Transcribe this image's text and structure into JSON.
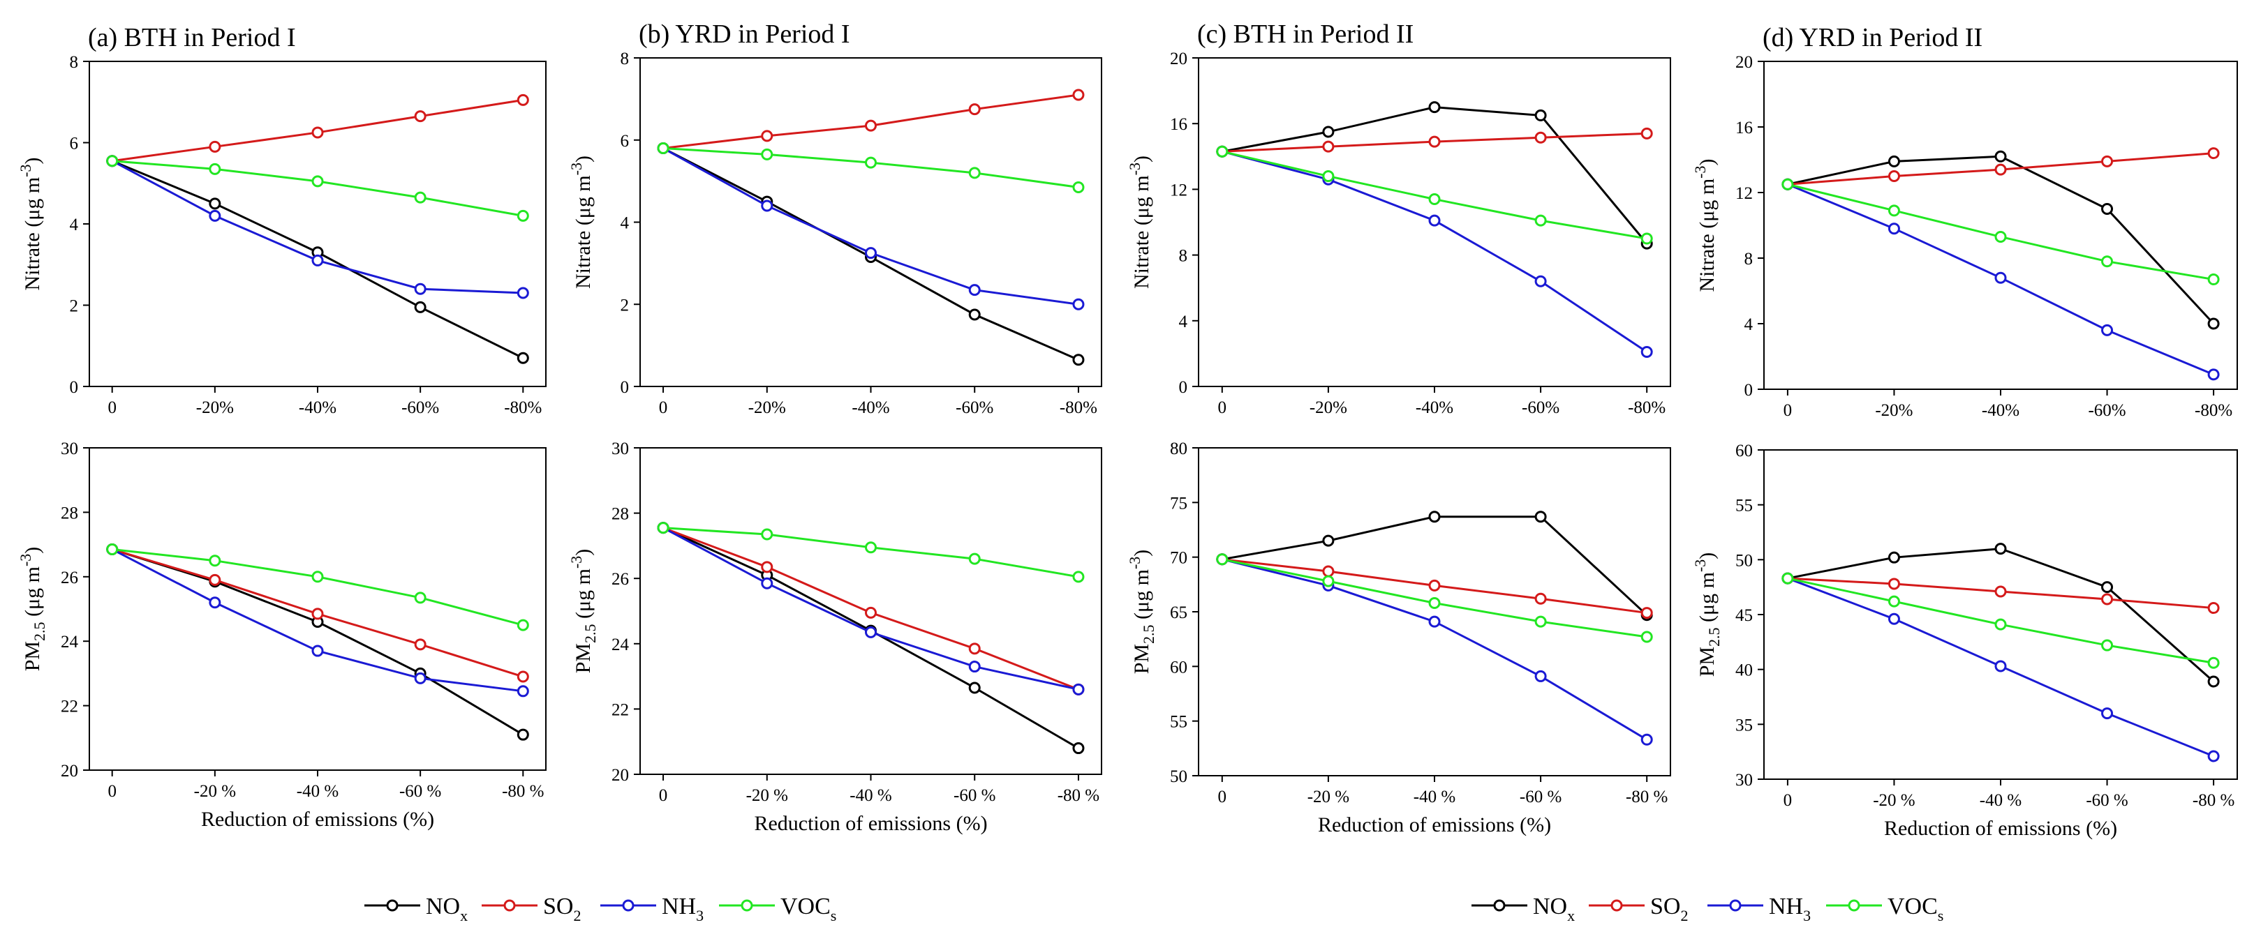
{
  "colors": {
    "NOx": "#000000",
    "SO2": "#d41a1a",
    "NH3": "#1a1ad4",
    "VOCs": "#22e622"
  },
  "legend": [
    {
      "key": "NOx",
      "main": "NO",
      "sub": "x"
    },
    {
      "key": "SO2",
      "main": "SO",
      "sub": "2"
    },
    {
      "key": "NH3",
      "main": "NH",
      "sub": "3"
    },
    {
      "key": "VOCs",
      "main": "VOC",
      "sub": "s"
    }
  ],
  "chart_data": [
    {
      "type": "line",
      "title": "(a) BTH in Period I",
      "ylabel": "Nitrate (μg m-3)",
      "xlabel": "",
      "categories": [
        "0",
        "-20%",
        "-40%",
        "-60%",
        "-80%"
      ],
      "ylim": [
        0,
        8
      ],
      "yticks": [
        0,
        2,
        4,
        6,
        8
      ],
      "series": [
        {
          "name": "NOx",
          "values": [
            5.55,
            4.5,
            3.3,
            1.95,
            0.7
          ]
        },
        {
          "name": "SO2",
          "values": [
            5.55,
            5.9,
            6.25,
            6.65,
            7.05
          ]
        },
        {
          "name": "NH3",
          "values": [
            5.55,
            4.2,
            3.1,
            2.4,
            2.3
          ]
        },
        {
          "name": "VOCs",
          "values": [
            5.55,
            5.35,
            5.05,
            4.65,
            4.2
          ]
        }
      ]
    },
    {
      "type": "line",
      "title": "(b) YRD in Period I",
      "ylabel": "Nitrate (μg m-3)",
      "xlabel": "",
      "categories": [
        "0",
        "-20%",
        "-40%",
        "-60%",
        "-80%"
      ],
      "ylim": [
        0,
        8
      ],
      "yticks": [
        0,
        2,
        4,
        6,
        8
      ],
      "series": [
        {
          "name": "NOx",
          "values": [
            5.8,
            4.5,
            3.15,
            1.75,
            0.65
          ]
        },
        {
          "name": "SO2",
          "values": [
            5.8,
            6.1,
            6.35,
            6.75,
            7.1
          ]
        },
        {
          "name": "NH3",
          "values": [
            5.8,
            4.4,
            3.25,
            2.35,
            2.0
          ]
        },
        {
          "name": "VOCs",
          "values": [
            5.8,
            5.65,
            5.45,
            5.2,
            4.85
          ]
        }
      ]
    },
    {
      "type": "line",
      "title": "(c) BTH in Period II",
      "ylabel": "Nitrate (μg m-3)",
      "xlabel": "",
      "categories": [
        "0",
        "-20%",
        "-40%",
        "-60%",
        "-80%"
      ],
      "ylim": [
        0,
        20
      ],
      "yticks": [
        0,
        4,
        8,
        12,
        16,
        20
      ],
      "series": [
        {
          "name": "NOx",
          "values": [
            14.3,
            15.5,
            17.0,
            16.5,
            8.7
          ]
        },
        {
          "name": "SO2",
          "values": [
            14.3,
            14.6,
            14.9,
            15.15,
            15.4
          ]
        },
        {
          "name": "NH3",
          "values": [
            14.3,
            12.6,
            10.1,
            6.4,
            2.1
          ]
        },
        {
          "name": "VOCs",
          "values": [
            14.3,
            12.8,
            11.4,
            10.1,
            9.0
          ]
        }
      ]
    },
    {
      "type": "line",
      "title": "(d) YRD in Period II",
      "ylabel": "Nitrate (μg m-3)",
      "xlabel": "",
      "categories": [
        "0",
        "-20%",
        "-40%",
        "-60%",
        "-80%"
      ],
      "ylim": [
        0,
        20
      ],
      "yticks": [
        0,
        4,
        8,
        12,
        16,
        20
      ],
      "series": [
        {
          "name": "NOx",
          "values": [
            12.5,
            13.9,
            14.2,
            11.0,
            4.0
          ]
        },
        {
          "name": "SO2",
          "values": [
            12.5,
            13.0,
            13.4,
            13.9,
            14.4
          ]
        },
        {
          "name": "NH3",
          "values": [
            12.5,
            9.8,
            6.8,
            3.6,
            0.9
          ]
        },
        {
          "name": "VOCs",
          "values": [
            12.5,
            10.9,
            9.3,
            7.8,
            6.7
          ]
        }
      ]
    },
    {
      "type": "line",
      "title": "",
      "ylabel": "PM2.5 (μg m-3)",
      "xlabel": "Reduction of emissions (%)",
      "categories": [
        "0",
        "-20 %",
        "-40 %",
        "-60 %",
        "-80 %"
      ],
      "ylim": [
        20,
        30
      ],
      "yticks": [
        20,
        22,
        24,
        26,
        28,
        30
      ],
      "series": [
        {
          "name": "NOx",
          "values": [
            26.85,
            25.85,
            24.6,
            23.0,
            21.1
          ]
        },
        {
          "name": "SO2",
          "values": [
            26.85,
            25.9,
            24.85,
            23.9,
            22.9
          ]
        },
        {
          "name": "NH3",
          "values": [
            26.85,
            25.2,
            23.7,
            22.85,
            22.45
          ]
        },
        {
          "name": "VOCs",
          "values": [
            26.85,
            26.5,
            26.0,
            25.35,
            24.5
          ]
        }
      ]
    },
    {
      "type": "line",
      "title": "",
      "ylabel": "PM2.5 (μg m-3)",
      "xlabel": "Reduction of emissions (%)",
      "categories": [
        "0",
        "-20 %",
        "-40 %",
        "-60 %",
        "-80 %"
      ],
      "ylim": [
        20,
        30
      ],
      "yticks": [
        20,
        22,
        24,
        26,
        28,
        30
      ],
      "series": [
        {
          "name": "NOx",
          "values": [
            27.55,
            26.1,
            24.4,
            22.65,
            20.8
          ]
        },
        {
          "name": "SO2",
          "values": [
            27.55,
            26.35,
            24.95,
            23.85,
            22.6
          ]
        },
        {
          "name": "NH3",
          "values": [
            27.55,
            25.85,
            24.35,
            23.3,
            22.6
          ]
        },
        {
          "name": "VOCs",
          "values": [
            27.55,
            27.35,
            26.95,
            26.6,
            26.05
          ]
        }
      ]
    },
    {
      "type": "line",
      "title": "",
      "ylabel": "PM2.5 (μg m-3)",
      "xlabel": "Reduction of emissions (%)",
      "categories": [
        "0",
        "-20 %",
        "-40 %",
        "-60 %",
        "-80 %"
      ],
      "ylim": [
        50,
        80
      ],
      "yticks": [
        50,
        55,
        60,
        65,
        70,
        75,
        80
      ],
      "series": [
        {
          "name": "NOx",
          "values": [
            69.8,
            71.5,
            73.7,
            73.7,
            64.7
          ]
        },
        {
          "name": "SO2",
          "values": [
            69.8,
            68.7,
            67.4,
            66.2,
            64.9
          ]
        },
        {
          "name": "NH3",
          "values": [
            69.8,
            67.4,
            64.1,
            59.1,
            53.3
          ]
        },
        {
          "name": "VOCs",
          "values": [
            69.8,
            67.8,
            65.8,
            64.1,
            62.7
          ]
        }
      ]
    },
    {
      "type": "line",
      "title": "",
      "ylabel": "PM2.5 (μg m-3)",
      "xlabel": "Reduction of emissions (%)",
      "categories": [
        "0",
        "-20 %",
        "-40 %",
        "-60 %",
        "-80 %"
      ],
      "ylim": [
        30,
        60
      ],
      "yticks": [
        30,
        35,
        40,
        45,
        50,
        55,
        60
      ],
      "series": [
        {
          "name": "NOx",
          "values": [
            48.3,
            50.2,
            51.0,
            47.5,
            38.9
          ]
        },
        {
          "name": "SO2",
          "values": [
            48.3,
            47.8,
            47.1,
            46.4,
            45.6
          ]
        },
        {
          "name": "NH3",
          "values": [
            48.3,
            44.6,
            40.3,
            36.0,
            32.1
          ]
        },
        {
          "name": "VOCs",
          "values": [
            48.3,
            46.2,
            44.1,
            42.2,
            40.6
          ]
        }
      ]
    }
  ]
}
